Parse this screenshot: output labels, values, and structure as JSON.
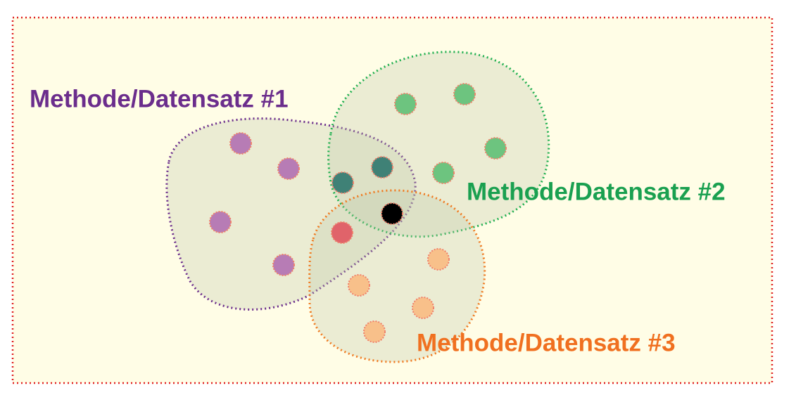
{
  "groups": [
    {
      "label": "Methode/Datensatz #1"
    },
    {
      "label": "Methode/Datensatz #2"
    },
    {
      "label": "Methode/Datensatz #3"
    }
  ]
}
